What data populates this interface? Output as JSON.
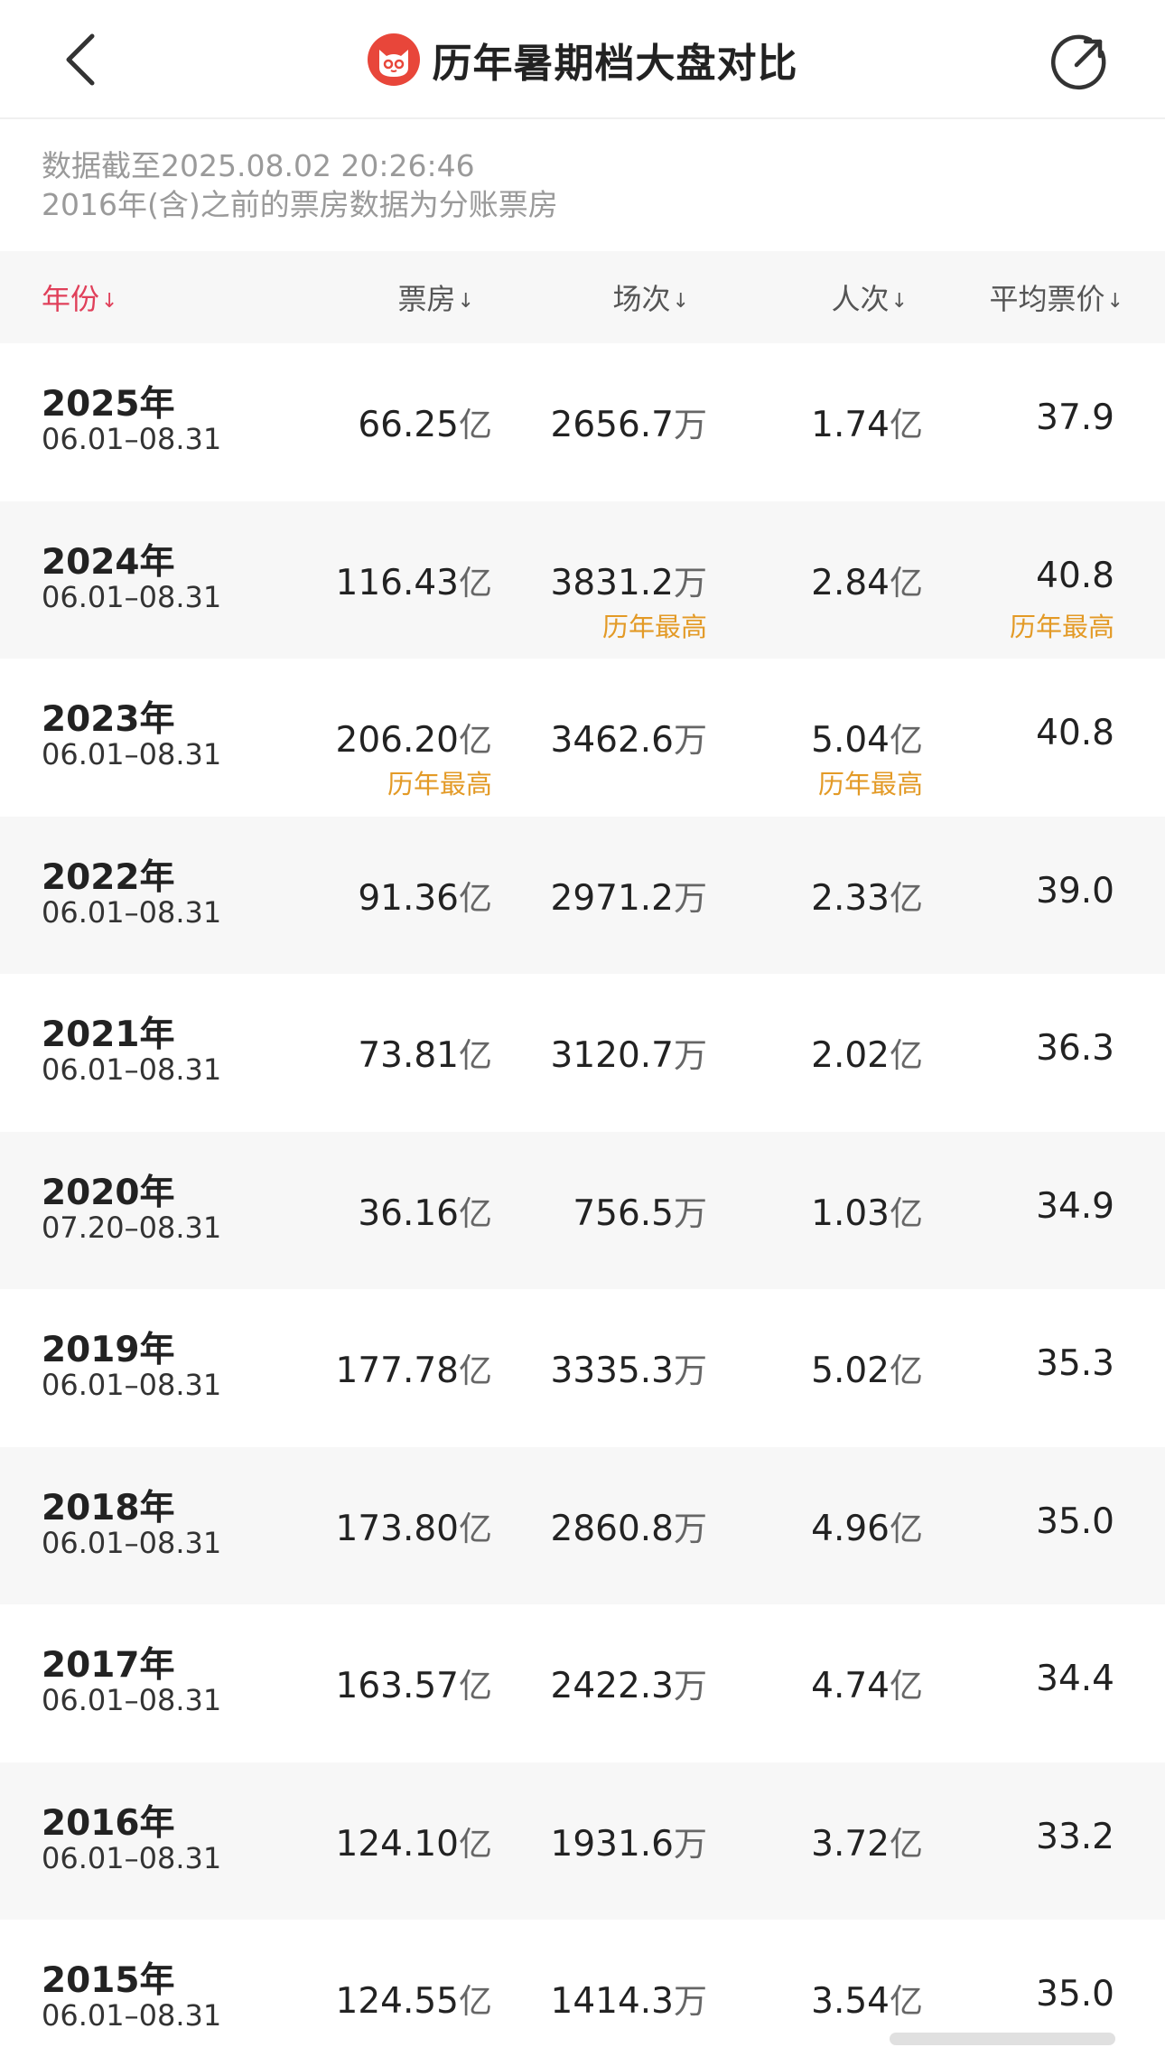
{
  "header": {
    "title": "历年暑期档大盘对比",
    "back_icon": "chevron-left-icon",
    "share_icon": "share-icon",
    "brand_color": "#e8463a"
  },
  "notes": {
    "updated": "数据截至2025.08.02 20:26:46",
    "disclaimer": "2016年(含)之前的票房数据为分账票房"
  },
  "columns": {
    "year": "年份",
    "box_office": "票房",
    "shows": "场次",
    "admissions": "人次",
    "avg_price": "平均票价",
    "sort_arrow": "↓",
    "active_color": "#e0405a"
  },
  "badge_color": "#e39a26",
  "rows": [
    {
      "year": "2025年",
      "range": "06.01–08.31",
      "box": "66.25",
      "box_u": "亿",
      "box_b": "",
      "shows": "2656.7",
      "shows_u": "万",
      "shows_b": "",
      "people": "1.74",
      "people_u": "亿",
      "people_b": "",
      "price": "37.9",
      "price_b": ""
    },
    {
      "year": "2024年",
      "range": "06.01–08.31",
      "box": "116.43",
      "box_u": "亿",
      "box_b": "",
      "shows": "3831.2",
      "shows_u": "万",
      "shows_b": "历年最高",
      "people": "2.84",
      "people_u": "亿",
      "people_b": "",
      "price": "40.8",
      "price_b": "历年最高"
    },
    {
      "year": "2023年",
      "range": "06.01–08.31",
      "box": "206.20",
      "box_u": "亿",
      "box_b": "历年最高",
      "shows": "3462.6",
      "shows_u": "万",
      "shows_b": "",
      "people": "5.04",
      "people_u": "亿",
      "people_b": "历年最高",
      "price": "40.8",
      "price_b": ""
    },
    {
      "year": "2022年",
      "range": "06.01–08.31",
      "box": "91.36",
      "box_u": "亿",
      "box_b": "",
      "shows": "2971.2",
      "shows_u": "万",
      "shows_b": "",
      "people": "2.33",
      "people_u": "亿",
      "people_b": "",
      "price": "39.0",
      "price_b": ""
    },
    {
      "year": "2021年",
      "range": "06.01–08.31",
      "box": "73.81",
      "box_u": "亿",
      "box_b": "",
      "shows": "3120.7",
      "shows_u": "万",
      "shows_b": "",
      "people": "2.02",
      "people_u": "亿",
      "people_b": "",
      "price": "36.3",
      "price_b": ""
    },
    {
      "year": "2020年",
      "range": "07.20–08.31",
      "box": "36.16",
      "box_u": "亿",
      "box_b": "",
      "shows": "756.5",
      "shows_u": "万",
      "shows_b": "",
      "people": "1.03",
      "people_u": "亿",
      "people_b": "",
      "price": "34.9",
      "price_b": ""
    },
    {
      "year": "2019年",
      "range": "06.01–08.31",
      "box": "177.78",
      "box_u": "亿",
      "box_b": "",
      "shows": "3335.3",
      "shows_u": "万",
      "shows_b": "",
      "people": "5.02",
      "people_u": "亿",
      "people_b": "",
      "price": "35.3",
      "price_b": ""
    },
    {
      "year": "2018年",
      "range": "06.01–08.31",
      "box": "173.80",
      "box_u": "亿",
      "box_b": "",
      "shows": "2860.8",
      "shows_u": "万",
      "shows_b": "",
      "people": "4.96",
      "people_u": "亿",
      "people_b": "",
      "price": "35.0",
      "price_b": ""
    },
    {
      "year": "2017年",
      "range": "06.01–08.31",
      "box": "163.57",
      "box_u": "亿",
      "box_b": "",
      "shows": "2422.3",
      "shows_u": "万",
      "shows_b": "",
      "people": "4.74",
      "people_u": "亿",
      "people_b": "",
      "price": "34.4",
      "price_b": ""
    },
    {
      "year": "2016年",
      "range": "06.01–08.31",
      "box": "124.10",
      "box_u": "亿",
      "box_b": "",
      "shows": "1931.6",
      "shows_u": "万",
      "shows_b": "",
      "people": "3.72",
      "people_u": "亿",
      "people_b": "",
      "price": "33.2",
      "price_b": ""
    },
    {
      "year": "2015年",
      "range": "06.01–08.31",
      "box": "124.55",
      "box_u": "亿",
      "box_b": "",
      "shows": "1414.3",
      "shows_u": "万",
      "shows_b": "",
      "people": "3.54",
      "people_u": "亿",
      "people_b": "",
      "price": "35.0",
      "price_b": ""
    }
  ]
}
